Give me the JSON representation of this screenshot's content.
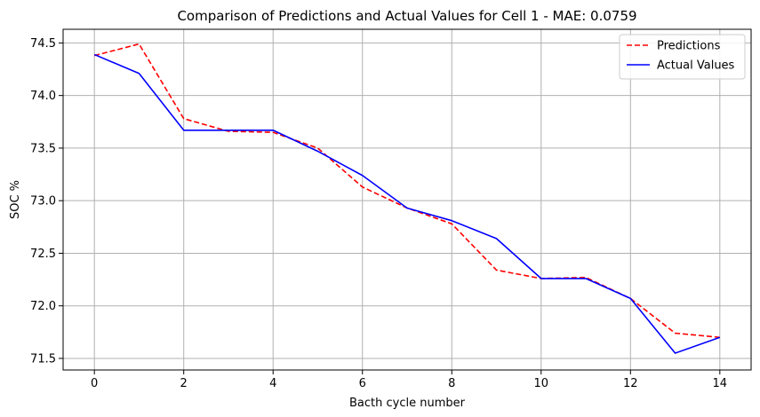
{
  "chart_data": {
    "type": "line",
    "title": "Comparison of Predictions and Actual Values for Cell 1 - MAE: 0.0759",
    "xlabel": "Bacth cycle number",
    "ylabel": "SOC %",
    "x": [
      0,
      1,
      2,
      3,
      4,
      5,
      6,
      7,
      8,
      9,
      10,
      11,
      12,
      13,
      14
    ],
    "xlim": [
      -0.7,
      14.7
    ],
    "ylim": [
      71.39,
      74.63
    ],
    "xticks": [
      0,
      2,
      4,
      6,
      8,
      10,
      12,
      14
    ],
    "yticks": [
      71.5,
      72.0,
      72.5,
      73.0,
      73.5,
      74.0,
      74.5
    ],
    "grid": true,
    "legend_position": "top-right",
    "series": [
      {
        "name": "Predictions",
        "color": "#ff0000",
        "style": "dashed",
        "values": [
          74.38,
          74.49,
          73.78,
          73.66,
          73.65,
          73.5,
          73.13,
          72.93,
          72.78,
          72.34,
          72.26,
          72.27,
          72.07,
          71.74,
          71.7
        ]
      },
      {
        "name": "Actual Values",
        "color": "#0000ff",
        "style": "solid",
        "values": [
          74.39,
          74.21,
          73.67,
          73.67,
          73.67,
          73.47,
          73.24,
          72.93,
          72.81,
          72.64,
          72.26,
          72.26,
          72.07,
          71.55,
          71.7
        ]
      }
    ]
  }
}
